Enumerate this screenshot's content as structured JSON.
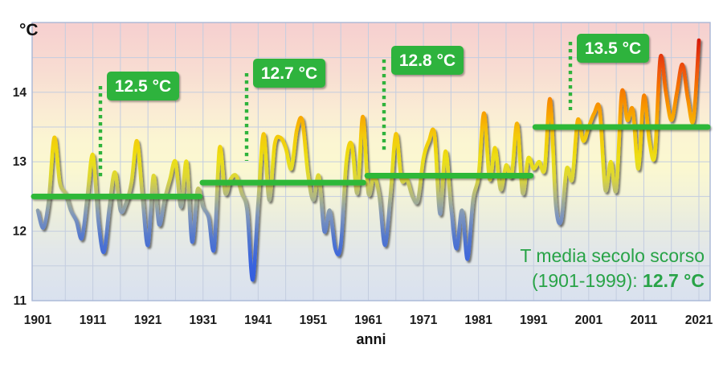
{
  "chart_data": {
    "type": "line",
    "title": "",
    "xlabel": "anni",
    "ylabel": "°C",
    "xlim": [
      1901,
      2023
    ],
    "ylim": [
      11,
      15
    ],
    "grid": "on",
    "x_ticks": [
      1901,
      1911,
      1921,
      1931,
      1941,
      1951,
      1961,
      1971,
      1981,
      1991,
      2001,
      2011,
      2021
    ],
    "y_ticks": [
      11,
      12,
      13,
      14
    ],
    "years": [
      1901,
      1902,
      1903,
      1904,
      1905,
      1906,
      1907,
      1908,
      1909,
      1910,
      1911,
      1912,
      1913,
      1914,
      1915,
      1916,
      1917,
      1918,
      1919,
      1920,
      1921,
      1922,
      1923,
      1924,
      1925,
      1926,
      1927,
      1928,
      1929,
      1930,
      1931,
      1932,
      1933,
      1934,
      1935,
      1936,
      1937,
      1938,
      1939,
      1940,
      1941,
      1942,
      1943,
      1944,
      1945,
      1946,
      1947,
      1948,
      1949,
      1950,
      1951,
      1952,
      1953,
      1954,
      1955,
      1956,
      1957,
      1958,
      1959,
      1960,
      1961,
      1962,
      1963,
      1964,
      1965,
      1966,
      1967,
      1968,
      1969,
      1970,
      1971,
      1972,
      1973,
      1974,
      1975,
      1976,
      1977,
      1978,
      1979,
      1980,
      1981,
      1982,
      1983,
      1984,
      1985,
      1986,
      1987,
      1988,
      1989,
      1990,
      1991,
      1992,
      1993,
      1994,
      1995,
      1996,
      1997,
      1998,
      1999,
      2000,
      2001,
      2002,
      2003,
      2004,
      2005,
      2006,
      2007,
      2008,
      2009,
      2010,
      2011,
      2012,
      2013,
      2014,
      2015,
      2016,
      2017,
      2018,
      2019,
      2020,
      2021
    ],
    "values": [
      12.3,
      12.05,
      12.45,
      13.35,
      12.7,
      12.55,
      12.3,
      12.15,
      11.9,
      12.5,
      13.1,
      12.15,
      11.7,
      12.35,
      12.85,
      12.3,
      12.4,
      12.7,
      13.3,
      12.5,
      11.8,
      12.8,
      12.1,
      12.45,
      12.75,
      13.0,
      12.35,
      13.0,
      11.85,
      12.6,
      12.35,
      12.2,
      11.75,
      13.2,
      12.55,
      12.75,
      12.8,
      12.55,
      12.3,
      11.3,
      12.4,
      13.4,
      12.45,
      13.25,
      13.35,
      13.2,
      12.9,
      13.45,
      13.6,
      12.85,
      12.45,
      12.8,
      12.0,
      12.3,
      11.75,
      11.8,
      13.0,
      13.25,
      12.55,
      13.65,
      12.55,
      12.8,
      12.5,
      11.8,
      12.5,
      13.4,
      12.75,
      12.75,
      12.5,
      12.45,
      13.05,
      13.3,
      13.4,
      12.25,
      13.15,
      12.35,
      11.75,
      12.3,
      11.6,
      12.45,
      12.8,
      13.7,
      12.75,
      13.2,
      12.6,
      12.95,
      12.8,
      13.55,
      12.55,
      13.05,
      12.9,
      13.0,
      12.9,
      13.9,
      12.4,
      12.15,
      12.9,
      12.75,
      13.6,
      13.3,
      13.5,
      13.7,
      13.75,
      12.6,
      13.0,
      12.6,
      14.0,
      13.6,
      13.75,
      12.9,
      13.95,
      13.3,
      13.1,
      14.5,
      14.0,
      13.6,
      14.0,
      14.4,
      13.9,
      13.6,
      14.75
    ],
    "period_averages": [
      {
        "label": "12.5 °C",
        "value": 12.5,
        "period": "1901-1930",
        "line_span_years": [
          1899.5,
          1930.4
        ]
      },
      {
        "label": "12.7 °C",
        "value": 12.7,
        "period": "1931-1960",
        "line_span_years": [
          1930.9,
          1960.1
        ]
      },
      {
        "label": "12.8 °C",
        "value": 12.8,
        "period": "1961-1990",
        "line_span_years": [
          1960.8,
          1990.5
        ]
      },
      {
        "label": "13.5 °C",
        "value": 13.5,
        "period": "1991-2021",
        "line_span_years": [
          1991.3,
          2022.6
        ]
      }
    ],
    "annotation": {
      "line1": "T media secolo scorso",
      "line2_prefix": "(1901-1999): ",
      "line2_value": "12.7 °C"
    },
    "legend": "none",
    "colors": {
      "accent_green": "#2fb33c",
      "avg_line_green": "#2db838",
      "annotation_green": "#28a347",
      "grid_color": "#c3cde0",
      "plot_border": "#a9b7d6",
      "tick_color": "#1b1b1b",
      "hot_extreme": "#c50d08",
      "cold_extreme": "#2b53e0"
    }
  }
}
